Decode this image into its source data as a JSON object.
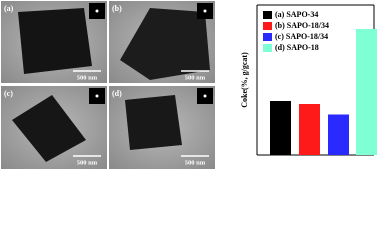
{
  "images": {
    "panels": [
      {
        "label": "(a)",
        "scale": "500 nm"
      },
      {
        "label": "(b)",
        "scale": "500 nm"
      },
      {
        "label": "(c)",
        "scale": "500 nm"
      },
      {
        "label": "(d)",
        "scale": "500 nm"
      }
    ]
  },
  "chart_data": {
    "type": "bar",
    "ylabel": "Coke(%, g/gcat)",
    "ylim": [
      0,
      5
    ],
    "series": [
      {
        "name": "(a) SAPO-34",
        "color": "#000000",
        "values": [
          1.8
        ]
      },
      {
        "name": "(b) SAPO-18/34",
        "color": "#ff1a1a",
        "values": [
          1.7
        ]
      },
      {
        "name": "(c) SAPO-18/34",
        "color": "#2a2aff",
        "values": [
          1.35
        ]
      },
      {
        "name": "(d) SAPO-18",
        "color": "#7fffd4",
        "values": [
          4.2
        ]
      }
    ]
  }
}
